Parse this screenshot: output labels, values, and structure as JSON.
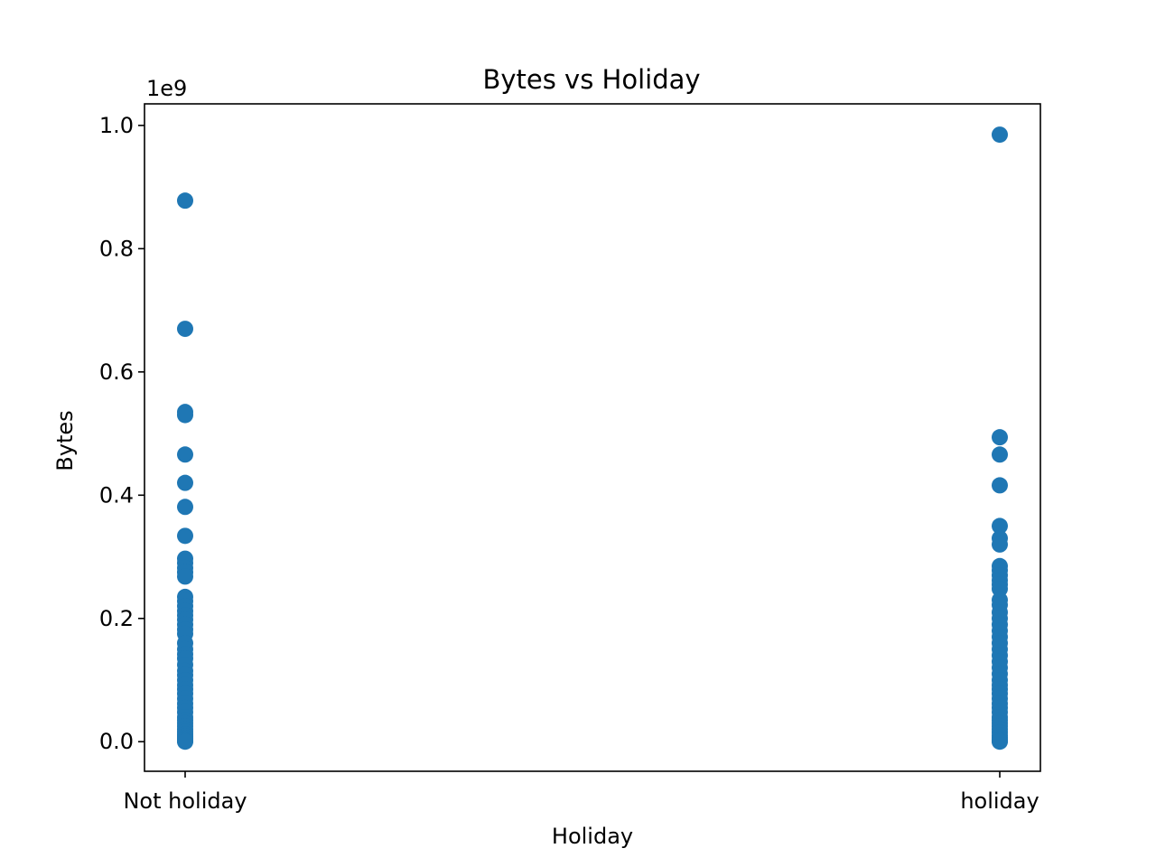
{
  "chart_data": {
    "type": "scatter",
    "title": "Bytes vs Holiday",
    "xlabel": "Holiday",
    "ylabel": "Bytes",
    "y_offset_label": "1e9",
    "categories": [
      "Not holiday",
      "holiday"
    ],
    "y_ticks": [
      "0.0",
      "0.2",
      "0.4",
      "0.6",
      "0.8",
      "1.0"
    ],
    "y_tick_values": [
      0,
      200000000,
      400000000,
      600000000,
      800000000,
      1000000000
    ],
    "ylim": [
      -48000000,
      1035000000
    ],
    "grid": false,
    "marker_color": "#1f77b4",
    "series": [
      {
        "category": "Not holiday",
        "values": [
          878000000,
          670000000,
          535000000,
          530000000,
          466000000,
          420000000,
          381000000,
          334000000,
          297000000,
          290000000,
          282000000,
          275000000,
          268000000,
          235000000,
          228000000,
          220000000,
          212000000,
          205000000,
          198000000,
          190000000,
          182000000,
          175000000,
          160000000,
          150000000,
          142000000,
          135000000,
          125000000,
          115000000,
          108000000,
          100000000,
          92000000,
          85000000,
          78000000,
          70000000,
          62000000,
          55000000,
          48000000,
          40000000,
          35000000,
          30000000,
          25000000,
          20000000,
          16000000,
          12000000,
          9000000,
          6000000,
          4000000,
          2000000,
          1000000,
          0
        ]
      },
      {
        "category": "holiday",
        "values": [
          985000000,
          494000000,
          466000000,
          416000000,
          350000000,
          330000000,
          320000000,
          285000000,
          278000000,
          270000000,
          262000000,
          255000000,
          248000000,
          230000000,
          222000000,
          210000000,
          200000000,
          190000000,
          180000000,
          170000000,
          160000000,
          150000000,
          140000000,
          130000000,
          120000000,
          110000000,
          100000000,
          92000000,
          85000000,
          78000000,
          70000000,
          62000000,
          55000000,
          48000000,
          40000000,
          35000000,
          30000000,
          25000000,
          20000000,
          15000000,
          10000000,
          7000000,
          4000000,
          2000000,
          1000000,
          0
        ]
      }
    ]
  }
}
